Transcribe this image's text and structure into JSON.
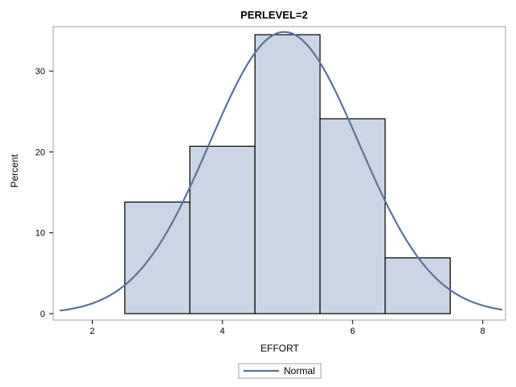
{
  "chart_data": {
    "type": "bar",
    "title": "PERLEVEL=2",
    "xlabel": "EFFORT",
    "ylabel": "Percent",
    "xlim": [
      1.4,
      8.35
    ],
    "ylim": [
      0,
      35.5
    ],
    "x_ticks": [
      2,
      4,
      6,
      8
    ],
    "y_ticks": [
      0,
      10,
      20,
      30
    ],
    "bins": [
      {
        "start": 2.5,
        "end": 3.5,
        "value": 13.8
      },
      {
        "start": 3.5,
        "end": 4.5,
        "value": 20.7
      },
      {
        "start": 4.5,
        "end": 5.5,
        "value": 34.5
      },
      {
        "start": 5.5,
        "end": 6.5,
        "value": 24.1
      },
      {
        "start": 6.5,
        "end": 7.5,
        "value": 6.9
      }
    ],
    "series": [
      {
        "name": "Normal",
        "type": "line",
        "mean": 4.95,
        "sd": 1.145,
        "bin_width": 1
      }
    ],
    "grid": false,
    "legend": {
      "position": "bottom",
      "entries": [
        "Normal"
      ]
    },
    "colors": {
      "bar_fill": "#cbd5e5",
      "bar_edge": "#000000",
      "curve": "#5b7497",
      "frame": "#a0a0a0"
    }
  }
}
